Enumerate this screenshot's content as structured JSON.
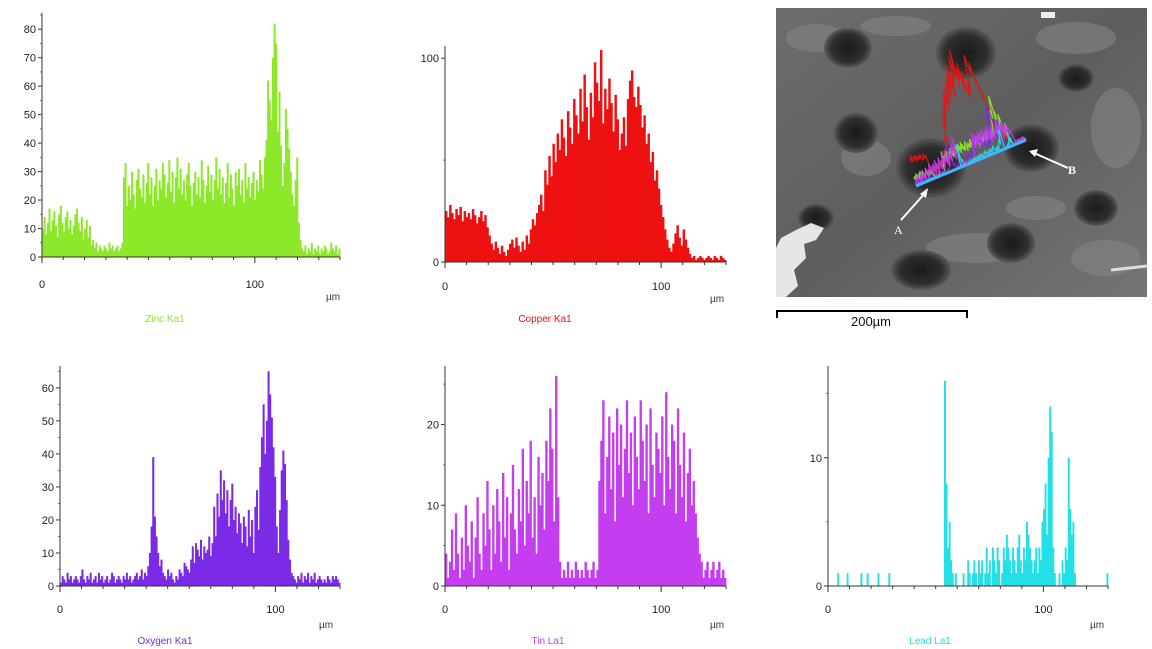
{
  "scale_bar": {
    "label": "200µm"
  },
  "sem_image": {
    "marker_a": "A",
    "marker_b": "B"
  },
  "chart_data": [
    {
      "type": "bar",
      "title": "Zinc Ka1",
      "color": "#8de82a",
      "xlabel": "µm",
      "xlim": [
        0,
        140
      ],
      "ylim": [
        0,
        85
      ],
      "xticks": [
        0,
        100
      ],
      "yticks": [
        0,
        10,
        20,
        30,
        40,
        50,
        60,
        70,
        80
      ],
      "values": [
        10,
        14,
        8,
        12,
        17,
        9,
        13,
        16,
        11,
        7,
        15,
        18,
        12,
        9,
        14,
        16,
        10,
        13,
        8,
        11,
        15,
        17,
        12,
        9,
        14,
        6,
        10,
        13,
        7,
        11,
        4,
        6,
        3,
        5,
        2,
        4,
        3,
        2,
        4,
        3,
        2,
        5,
        3,
        4,
        2,
        3,
        4,
        2,
        3,
        5,
        28,
        33,
        18,
        25,
        20,
        30,
        22,
        17,
        27,
        31,
        24,
        21,
        29,
        19,
        26,
        33,
        22,
        28,
        18,
        25,
        31,
        20,
        27,
        24,
        33,
        29,
        21,
        26,
        34,
        23,
        30,
        19,
        28,
        35,
        24,
        31,
        22,
        27,
        20,
        29,
        33,
        25,
        18,
        26,
        30,
        22,
        28,
        21,
        34,
        27,
        19,
        25,
        32,
        23,
        29,
        20,
        27,
        35,
        24,
        31,
        22,
        28,
        19,
        26,
        33,
        21,
        29,
        24,
        18,
        30,
        25,
        31,
        22,
        27,
        19,
        33,
        24,
        28,
        21,
        26,
        30,
        20,
        27,
        23,
        34,
        29,
        24,
        35,
        41,
        62,
        55,
        48,
        70,
        82,
        75,
        44,
        58,
        39,
        25,
        33,
        52,
        45,
        38,
        30,
        22,
        18,
        27,
        35,
        12,
        6,
        3,
        2,
        4,
        1,
        3,
        2,
        5,
        1,
        3,
        2,
        4,
        1,
        3,
        2,
        4,
        3,
        1,
        2,
        5,
        3,
        2,
        4,
        1,
        3
      ],
      "panel": 0
    },
    {
      "type": "bar",
      "title": "Copper Ka1",
      "color": "#ee1111",
      "xlabel": "µm",
      "xlim": [
        0,
        130
      ],
      "ylim": [
        0,
        105
      ],
      "xticks": [
        0,
        100
      ],
      "yticks": [
        0,
        100
      ],
      "values": [
        25,
        22,
        28,
        24,
        21,
        26,
        23,
        27,
        20,
        25,
        22,
        24,
        21,
        26,
        23,
        19,
        22,
        25,
        20,
        23,
        17,
        13,
        9,
        6,
        10,
        7,
        4,
        8,
        5,
        3,
        6,
        9,
        11,
        7,
        12,
        8,
        5,
        10,
        6,
        13,
        9,
        16,
        21,
        18,
        24,
        28,
        33,
        25,
        45,
        38,
        52,
        42,
        58,
        49,
        63,
        55,
        70,
        61,
        52,
        74,
        66,
        58,
        80,
        72,
        63,
        85,
        69,
        92,
        76,
        60,
        83,
        71,
        98,
        88,
        79,
        104,
        68,
        85,
        75,
        90,
        78,
        64,
        82,
        70,
        55,
        63,
        71,
        57,
        80,
        89,
        94,
        81,
        76,
        86,
        77,
        66,
        72,
        58,
        63,
        49,
        54,
        40,
        45,
        36,
        28,
        22,
        16,
        11,
        7,
        5,
        9,
        14,
        18,
        12,
        8,
        16,
        11,
        7,
        4,
        2,
        3,
        1,
        2,
        3,
        2,
        1,
        2,
        3,
        2,
        1,
        3,
        2,
        1,
        3,
        2,
        1
      ],
      "panel": 1
    },
    {
      "type": "bar",
      "title": "Oxygen Ka1",
      "color": "#7b2ae6",
      "xlabel": "µm",
      "xlim": [
        0,
        130
      ],
      "ylim": [
        0,
        66
      ],
      "xticks": [
        0,
        100
      ],
      "yticks": [
        0,
        10,
        20,
        30,
        40,
        50,
        60
      ],
      "values": [
        1,
        3,
        2,
        1,
        4,
        2,
        3,
        1,
        2,
        3,
        2,
        1,
        3,
        5,
        2,
        1,
        3,
        2,
        4,
        1,
        2,
        3,
        1,
        4,
        2,
        3,
        1,
        2,
        3,
        1,
        2,
        4,
        3,
        1,
        2,
        3,
        2,
        1,
        3,
        2,
        4,
        2,
        3,
        1,
        2,
        3,
        4,
        2,
        3,
        5,
        2,
        4,
        3,
        6,
        10,
        18,
        39,
        21,
        15,
        10,
        6,
        8,
        4,
        3,
        2,
        5,
        3,
        4,
        2,
        1,
        3,
        2,
        5,
        4,
        3,
        7,
        6,
        5,
        4,
        8,
        12,
        7,
        13,
        11,
        9,
        14,
        8,
        12,
        10,
        11,
        15,
        9,
        13,
        24,
        15,
        28,
        21,
        35,
        26,
        32,
        22,
        29,
        18,
        26,
        31,
        20,
        24,
        16,
        22,
        19,
        13,
        21,
        18,
        12,
        23,
        15,
        20,
        10,
        24,
        29,
        17,
        36,
        45,
        55,
        40,
        50,
        65,
        58,
        51,
        42,
        33,
        18,
        10,
        23,
        35,
        41,
        37,
        26,
        14,
        8,
        4,
        3,
        2,
        1,
        3,
        2,
        4,
        1,
        3,
        2,
        4,
        1,
        3,
        2,
        4,
        1,
        2,
        3,
        2,
        1,
        2,
        1,
        3,
        2,
        1,
        3,
        2,
        3,
        2,
        1
      ],
      "panel": 2
    },
    {
      "type": "bar",
      "title": "Tin La1",
      "color": "#c43ef0",
      "xlabel": "µm",
      "xlim": [
        0,
        130
      ],
      "ylim": [
        0,
        27
      ],
      "xticks": [
        0,
        100
      ],
      "yticks": [
        0,
        10,
        20
      ],
      "values": [
        4,
        1,
        3,
        7,
        2,
        9,
        4,
        1,
        6,
        2,
        10,
        5,
        3,
        8,
        1,
        6,
        11,
        4,
        2,
        9,
        5,
        13,
        7,
        2,
        10,
        4,
        12,
        8,
        3,
        14,
        6,
        11,
        2,
        9,
        15,
        7,
        4,
        12,
        8,
        17,
        5,
        13,
        9,
        18,
        6,
        11,
        4,
        16,
        10,
        14,
        7,
        18,
        13,
        22,
        17,
        8,
        26,
        11,
        3,
        1,
        2,
        1,
        3,
        1,
        2,
        1,
        3,
        2,
        1,
        2,
        1,
        3,
        2,
        1,
        2,
        3,
        1,
        2,
        13,
        18,
        23,
        9,
        16,
        21,
        12,
        19,
        8,
        22,
        15,
        20,
        11,
        17,
        23,
        14,
        19,
        10,
        21,
        16,
        12,
        23,
        18,
        13,
        20,
        9,
        22,
        15,
        11,
        19,
        17,
        14,
        21,
        10,
        24,
        16,
        12,
        20,
        18,
        9,
        22,
        15,
        11,
        19,
        8,
        14,
        17,
        10,
        13,
        9,
        6,
        4,
        3,
        1,
        2,
        3,
        1,
        2,
        3,
        1,
        2,
        3,
        1,
        2,
        1
      ],
      "panel": 3
    },
    {
      "type": "bar",
      "title": "Lead La1",
      "color": "#22e0e6",
      "xlabel": "µm",
      "xlim": [
        0,
        130
      ],
      "ylim": [
        0,
        17
      ],
      "xticks": [
        0,
        100
      ],
      "yticks": [
        0,
        10
      ],
      "values": [
        0,
        0,
        0,
        0,
        0,
        0,
        1,
        0,
        0,
        0,
        0,
        0,
        1,
        0,
        0,
        0,
        0,
        0,
        0,
        0,
        0,
        1,
        0,
        0,
        0,
        1,
        0,
        0,
        0,
        0,
        0,
        0,
        1,
        0,
        0,
        0,
        0,
        0,
        0,
        1,
        0,
        0,
        0,
        0,
        0,
        0,
        0,
        0,
        0,
        0,
        0,
        0,
        0,
        0,
        0,
        0,
        0,
        0,
        0,
        0,
        0,
        0,
        0,
        0,
        0,
        0,
        0,
        0,
        0,
        0,
        0,
        0,
        0,
        0,
        0,
        16,
        8,
        3,
        5,
        2,
        1,
        0,
        1,
        0,
        0,
        0,
        0,
        1,
        0,
        0,
        2,
        1,
        0,
        1,
        2,
        1,
        0,
        2,
        1,
        2,
        0,
        1,
        3,
        1,
        2,
        0,
        3,
        2,
        1,
        3,
        2,
        0,
        1,
        3,
        2,
        4,
        3,
        2,
        1,
        3,
        2,
        1,
        3,
        4,
        2,
        1,
        3,
        2,
        5,
        4,
        3,
        2,
        1,
        2,
        3,
        1,
        3,
        2,
        5,
        6,
        8,
        4,
        10,
        14,
        12,
        3,
        1,
        0,
        0,
        1,
        0,
        2,
        1,
        3,
        2,
        10,
        6,
        4,
        5,
        1,
        0,
        0,
        0,
        0,
        0,
        0,
        0,
        0,
        0,
        0,
        0,
        0,
        0,
        0,
        0,
        0,
        0,
        0,
        0,
        0,
        1
      ],
      "panel": 4
    }
  ]
}
